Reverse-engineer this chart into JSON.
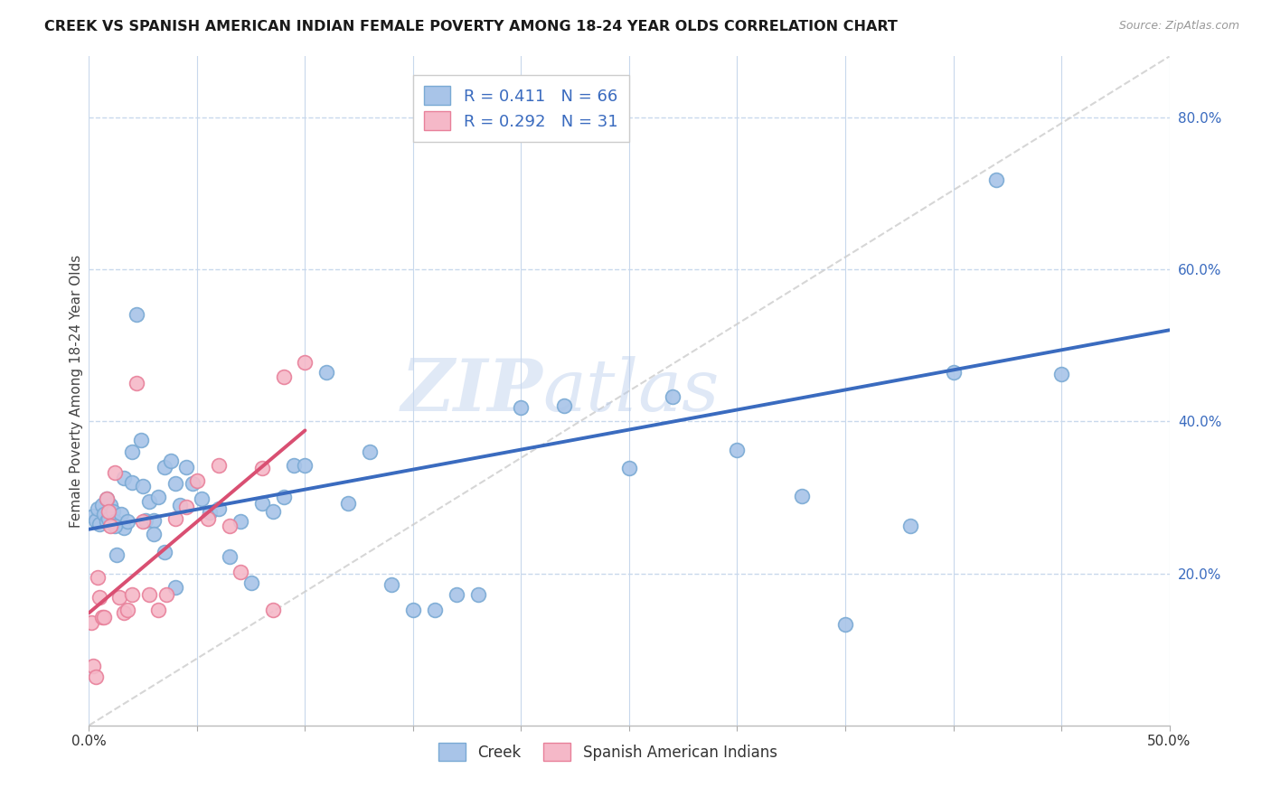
{
  "title": "CREEK VS SPANISH AMERICAN INDIAN FEMALE POVERTY AMONG 18-24 YEAR OLDS CORRELATION CHART",
  "source": "Source: ZipAtlas.com",
  "ylabel": "Female Poverty Among 18-24 Year Olds",
  "xlim": [
    0.0,
    0.5
  ],
  "ylim": [
    0.0,
    0.88
  ],
  "xticks": [
    0.0,
    0.05,
    0.1,
    0.15,
    0.2,
    0.25,
    0.3,
    0.35,
    0.4,
    0.45,
    0.5
  ],
  "xticklabels": [
    "0.0%",
    "",
    "",
    "",
    "",
    "",
    "",
    "",
    "",
    "",
    "50.0%"
  ],
  "yticks": [
    0.2,
    0.4,
    0.6,
    0.8
  ],
  "yticklabels": [
    "20.0%",
    "40.0%",
    "60.0%",
    "80.0%"
  ],
  "creek_color": "#a8c4e8",
  "creek_edge": "#7aaad4",
  "sai_color": "#f5b8c8",
  "sai_edge": "#e8809a",
  "creek_R": 0.411,
  "creek_N": 66,
  "sai_R": 0.292,
  "sai_N": 31,
  "creek_line_color": "#3a6bbf",
  "sai_line_color": "#d94f72",
  "ref_line_color": "#cccccc",
  "watermark_zip": "ZIP",
  "watermark_atlas": "atlas",
  "background_color": "#ffffff",
  "grid_color": "#c8d8ec",
  "creek_x": [
    0.002,
    0.003,
    0.004,
    0.005,
    0.006,
    0.007,
    0.008,
    0.009,
    0.01,
    0.011,
    0.012,
    0.013,
    0.015,
    0.016,
    0.018,
    0.02,
    0.022,
    0.024,
    0.026,
    0.028,
    0.03,
    0.032,
    0.035,
    0.038,
    0.04,
    0.042,
    0.045,
    0.048,
    0.052,
    0.056,
    0.06,
    0.065,
    0.07,
    0.075,
    0.08,
    0.085,
    0.09,
    0.095,
    0.1,
    0.11,
    0.12,
    0.13,
    0.14,
    0.15,
    0.16,
    0.17,
    0.18,
    0.2,
    0.22,
    0.25,
    0.27,
    0.3,
    0.33,
    0.35,
    0.38,
    0.4,
    0.42,
    0.45,
    0.008,
    0.012,
    0.016,
    0.02,
    0.025,
    0.03,
    0.035,
    0.04
  ],
  "creek_y": [
    0.275,
    0.27,
    0.285,
    0.265,
    0.29,
    0.278,
    0.268,
    0.272,
    0.29,
    0.282,
    0.268,
    0.225,
    0.278,
    0.26,
    0.268,
    0.36,
    0.54,
    0.375,
    0.27,
    0.295,
    0.27,
    0.3,
    0.34,
    0.348,
    0.318,
    0.29,
    0.34,
    0.318,
    0.298,
    0.28,
    0.285,
    0.222,
    0.268,
    0.188,
    0.292,
    0.282,
    0.3,
    0.342,
    0.342,
    0.465,
    0.292,
    0.36,
    0.185,
    0.152,
    0.152,
    0.172,
    0.172,
    0.418,
    0.42,
    0.338,
    0.432,
    0.362,
    0.302,
    0.133,
    0.262,
    0.465,
    0.718,
    0.462,
    0.298,
    0.262,
    0.325,
    0.32,
    0.315,
    0.252,
    0.228,
    0.182
  ],
  "sai_x": [
    0.001,
    0.002,
    0.003,
    0.004,
    0.005,
    0.006,
    0.007,
    0.008,
    0.009,
    0.01,
    0.012,
    0.014,
    0.016,
    0.018,
    0.02,
    0.022,
    0.025,
    0.028,
    0.032,
    0.036,
    0.04,
    0.045,
    0.05,
    0.055,
    0.06,
    0.065,
    0.07,
    0.08,
    0.085,
    0.09,
    0.1
  ],
  "sai_y": [
    0.135,
    0.078,
    0.064,
    0.195,
    0.168,
    0.142,
    0.142,
    0.298,
    0.282,
    0.262,
    0.332,
    0.168,
    0.148,
    0.152,
    0.172,
    0.45,
    0.268,
    0.172,
    0.152,
    0.172,
    0.272,
    0.288,
    0.322,
    0.272,
    0.342,
    0.262,
    0.202,
    0.338,
    0.152,
    0.458,
    0.478
  ],
  "creek_line_x": [
    0.0,
    0.5
  ],
  "creek_line_y": [
    0.258,
    0.52
  ],
  "sai_line_x": [
    0.0,
    0.1
  ],
  "sai_line_y": [
    0.148,
    0.388
  ],
  "ref_line_x": [
    0.0,
    0.5
  ],
  "ref_line_y": [
    0.0,
    0.88
  ]
}
